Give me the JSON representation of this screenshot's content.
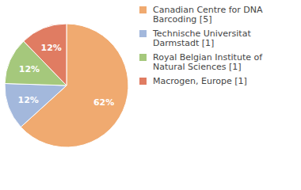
{
  "chart_data": {
    "type": "pie",
    "categories": [
      "Canadian Centre for DNA Barcoding [5]",
      "Technische Universitat Darmstadt [1]",
      "Royal Belgian Institute of Natural Sciences [1]",
      "Macrogen, Europe [1]"
    ],
    "values": [
      62,
      12,
      12,
      12
    ],
    "value_labels": [
      "62%",
      "12%",
      "12%",
      "12%"
    ],
    "colors": [
      "#f0aa70",
      "#a3b8dc",
      "#a5c87c",
      "#e07c62"
    ],
    "data_labels": true,
    "legend": "right"
  }
}
